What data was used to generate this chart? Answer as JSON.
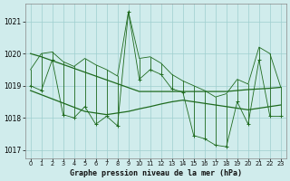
{
  "hours": [
    0,
    1,
    2,
    3,
    4,
    5,
    6,
    7,
    8,
    9,
    10,
    11,
    12,
    13,
    14,
    15,
    16,
    17,
    18,
    19,
    20,
    21,
    22,
    23
  ],
  "pressure_min": [
    1019.0,
    1018.85,
    1019.8,
    1018.1,
    1018.0,
    1018.35,
    1017.8,
    1018.05,
    1017.75,
    1021.3,
    1019.2,
    1019.5,
    1019.35,
    1018.9,
    1018.8,
    1017.45,
    1017.35,
    1017.15,
    1017.1,
    1018.5,
    1017.8,
    1019.8,
    1018.05,
    1018.05
  ],
  "pressure_max": [
    1019.5,
    1020.0,
    1020.05,
    1019.75,
    1019.6,
    1019.85,
    1019.65,
    1019.5,
    1019.3,
    1021.3,
    1019.85,
    1019.9,
    1019.7,
    1019.35,
    1019.15,
    1019.0,
    1018.85,
    1018.65,
    1018.75,
    1019.2,
    1019.05,
    1020.2,
    1020.0,
    1018.95
  ],
  "trend_high": [
    1020.0,
    1019.9,
    1019.78,
    1019.66,
    1019.54,
    1019.42,
    1019.3,
    1019.18,
    1019.06,
    1018.94,
    1018.82,
    1018.82,
    1018.82,
    1018.82,
    1018.82,
    1018.82,
    1018.82,
    1018.82,
    1018.82,
    1018.85,
    1018.88,
    1018.9,
    1018.92,
    1018.95
  ],
  "trend_low": [
    1018.85,
    1018.72,
    1018.59,
    1018.46,
    1018.33,
    1018.2,
    1018.15,
    1018.1,
    1018.15,
    1018.2,
    1018.28,
    1018.35,
    1018.43,
    1018.5,
    1018.55,
    1018.5,
    1018.45,
    1018.4,
    1018.35,
    1018.3,
    1018.25,
    1018.3,
    1018.35,
    1018.4
  ],
  "line_color": "#1f6b1f",
  "bg_color": "#d0ecec",
  "grid_color": "#9ecfcf",
  "title": "Graphe pression niveau de la mer (hPa)",
  "ylim_min": 1016.75,
  "ylim_max": 1021.55,
  "yticks": [
    1017,
    1018,
    1019,
    1020,
    1021
  ],
  "xlim_min": -0.5,
  "xlim_max": 23.5
}
